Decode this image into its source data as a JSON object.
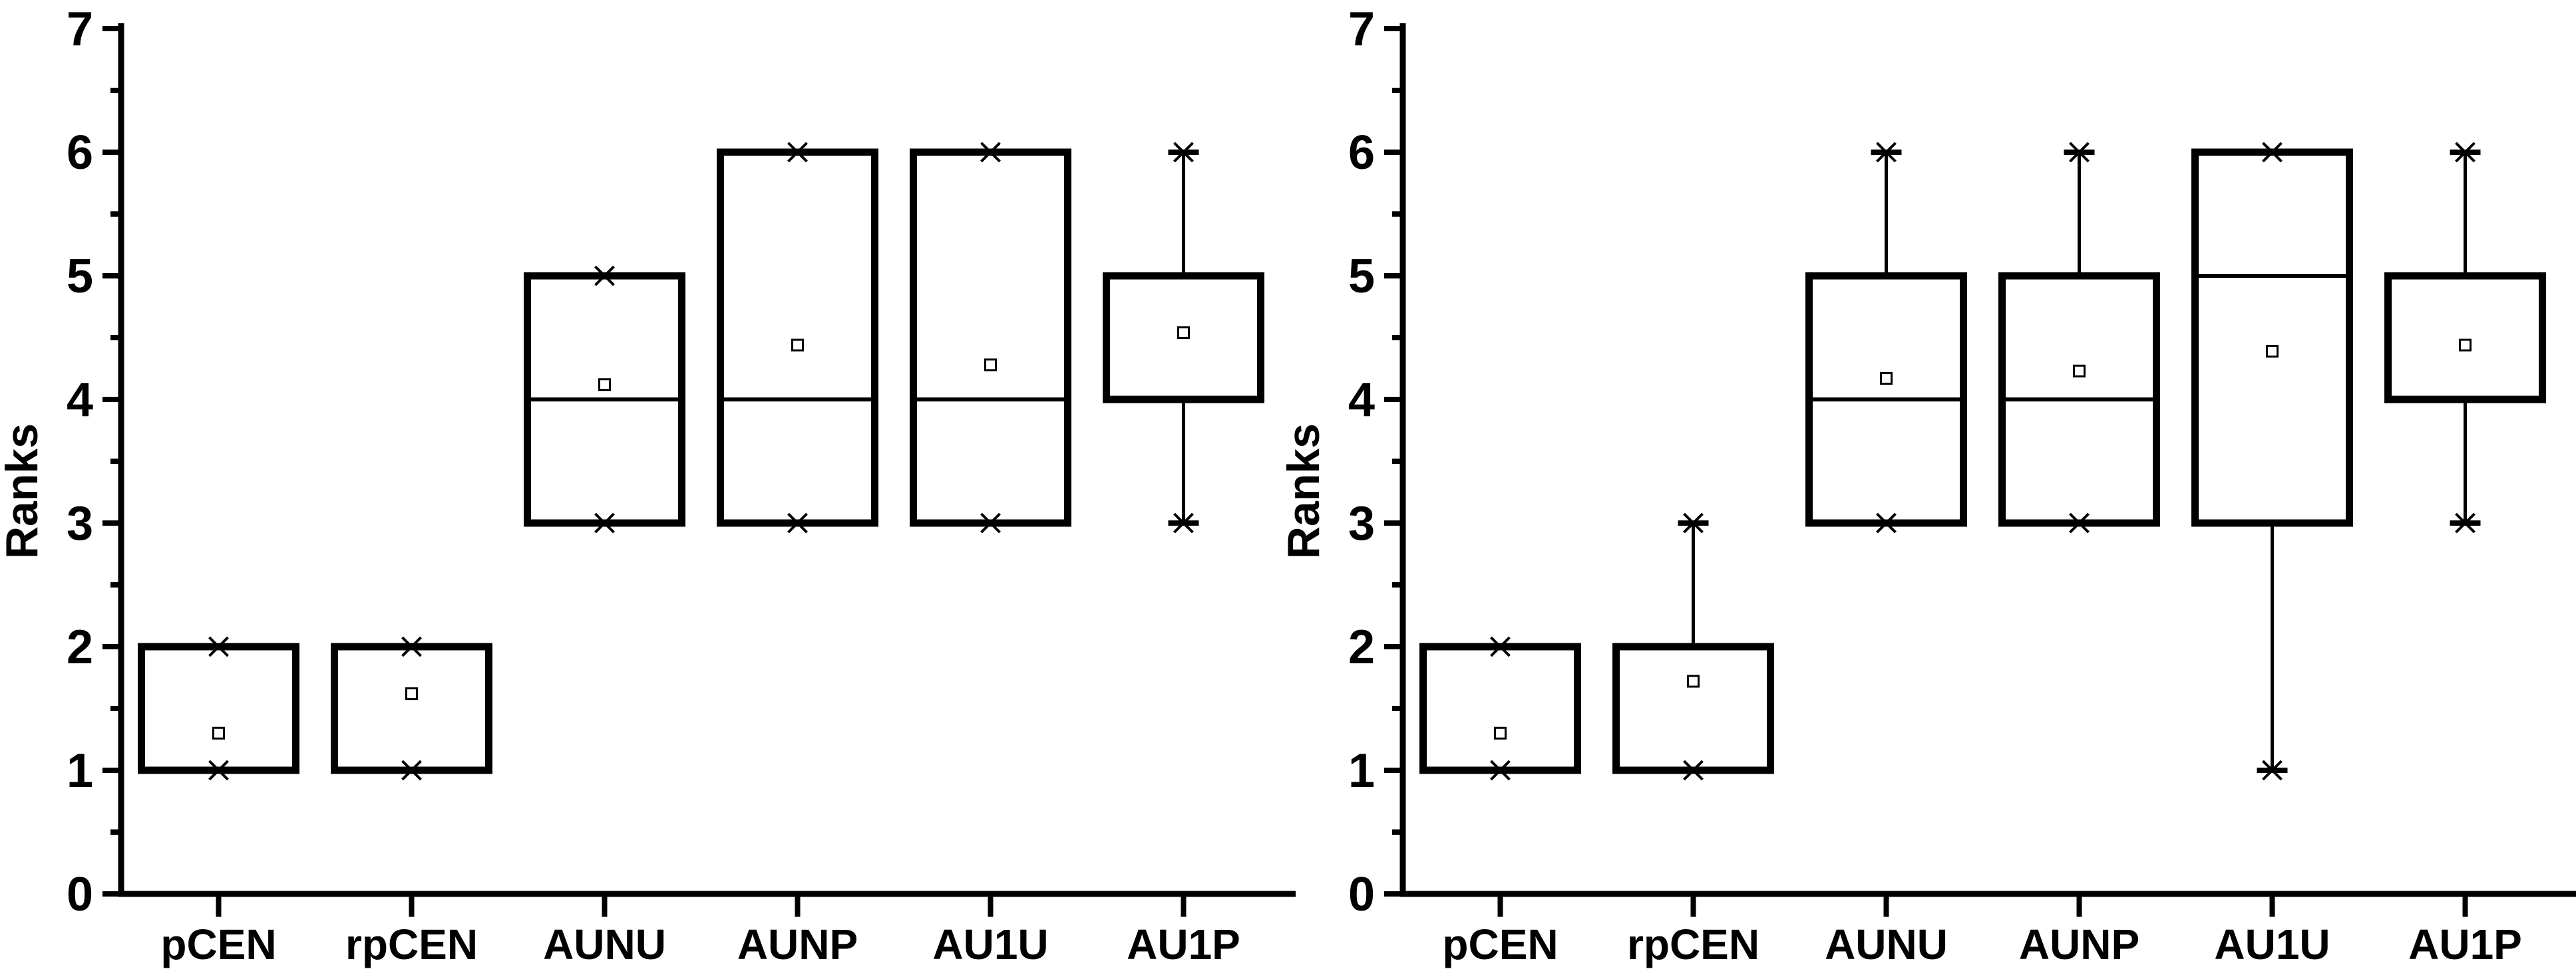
{
  "figure": {
    "ylabel": "Ranks",
    "background_color": "#ffffff",
    "ink_color": "#000000"
  },
  "chart_data": [
    {
      "type": "box",
      "panel": "left",
      "title": "",
      "xlabel": "",
      "ylabel": "Ranks",
      "ylim": [
        0,
        7
      ],
      "yticks": [
        0,
        1,
        2,
        3,
        4,
        5,
        6,
        7
      ],
      "minor_yticks": [
        0.5,
        1.5,
        2.5,
        3.5,
        4.5,
        5.5,
        6.5
      ],
      "grid": false,
      "legend": "none",
      "categories": [
        "pCEN",
        "rpCEN",
        "AUNU",
        "AUNP",
        "AU1U",
        "AU1P"
      ],
      "boxes": [
        {
          "label": "pCEN",
          "q1": 1,
          "q3": 2,
          "median": null,
          "whisker_low": null,
          "whisker_high": null,
          "data_min": 1,
          "data_max": 2,
          "mean": 1.3
        },
        {
          "label": "rpCEN",
          "q1": 1,
          "q3": 2,
          "median": null,
          "whisker_low": null,
          "whisker_high": null,
          "data_min": 1,
          "data_max": 2,
          "mean": 1.62
        },
        {
          "label": "AUNU",
          "q1": 3,
          "q3": 5,
          "median": 4,
          "whisker_low": null,
          "whisker_high": null,
          "data_min": 3,
          "data_max": 5,
          "mean": 4.12
        },
        {
          "label": "AUNP",
          "q1": 3,
          "q3": 6,
          "median": 4,
          "whisker_low": null,
          "whisker_high": null,
          "data_min": 3,
          "data_max": 6,
          "mean": 4.44
        },
        {
          "label": "AU1U",
          "q1": 3,
          "q3": 6,
          "median": 4,
          "whisker_low": null,
          "whisker_high": null,
          "data_min": 3,
          "data_max": 6,
          "mean": 4.28
        },
        {
          "label": "AU1P",
          "q1": 4,
          "q3": 5,
          "median": null,
          "whisker_low": 3,
          "whisker_high": 6,
          "data_min": 3,
          "data_max": 6,
          "mean": 4.54
        }
      ]
    },
    {
      "type": "box",
      "panel": "right",
      "title": "",
      "xlabel": "",
      "ylabel": "Ranks",
      "ylim": [
        0,
        7
      ],
      "yticks": [
        0,
        1,
        2,
        3,
        4,
        5,
        6,
        7
      ],
      "minor_yticks": [
        0.5,
        1.5,
        2.5,
        3.5,
        4.5,
        5.5,
        6.5
      ],
      "grid": false,
      "legend": "none",
      "categories": [
        "pCEN",
        "rpCEN",
        "AUNU",
        "AUNP",
        "AU1U",
        "AU1P"
      ],
      "boxes": [
        {
          "label": "pCEN",
          "q1": 1,
          "q3": 2,
          "median": null,
          "whisker_low": null,
          "whisker_high": null,
          "data_min": 1,
          "data_max": 2,
          "mean": 1.3
        },
        {
          "label": "rpCEN",
          "q1": 1,
          "q3": 2,
          "median": null,
          "whisker_low": null,
          "whisker_high": 3,
          "data_min": 1,
          "data_max": 3,
          "mean": 1.72
        },
        {
          "label": "AUNU",
          "q1": 3,
          "q3": 5,
          "median": 4,
          "whisker_low": null,
          "whisker_high": 6,
          "data_min": 3,
          "data_max": 6,
          "mean": 4.17
        },
        {
          "label": "AUNP",
          "q1": 3,
          "q3": 5,
          "median": 4,
          "whisker_low": null,
          "whisker_high": 6,
          "data_min": 3,
          "data_max": 6,
          "mean": 4.23
        },
        {
          "label": "AU1U",
          "q1": 3,
          "q3": 6,
          "median": 5,
          "whisker_low": 1,
          "whisker_high": null,
          "data_min": 1,
          "data_max": 6,
          "mean": 4.39
        },
        {
          "label": "AU1P",
          "q1": 4,
          "q3": 5,
          "median": null,
          "whisker_low": 3,
          "whisker_high": 6,
          "data_min": 3,
          "data_max": 6,
          "mean": 4.44
        }
      ]
    }
  ]
}
